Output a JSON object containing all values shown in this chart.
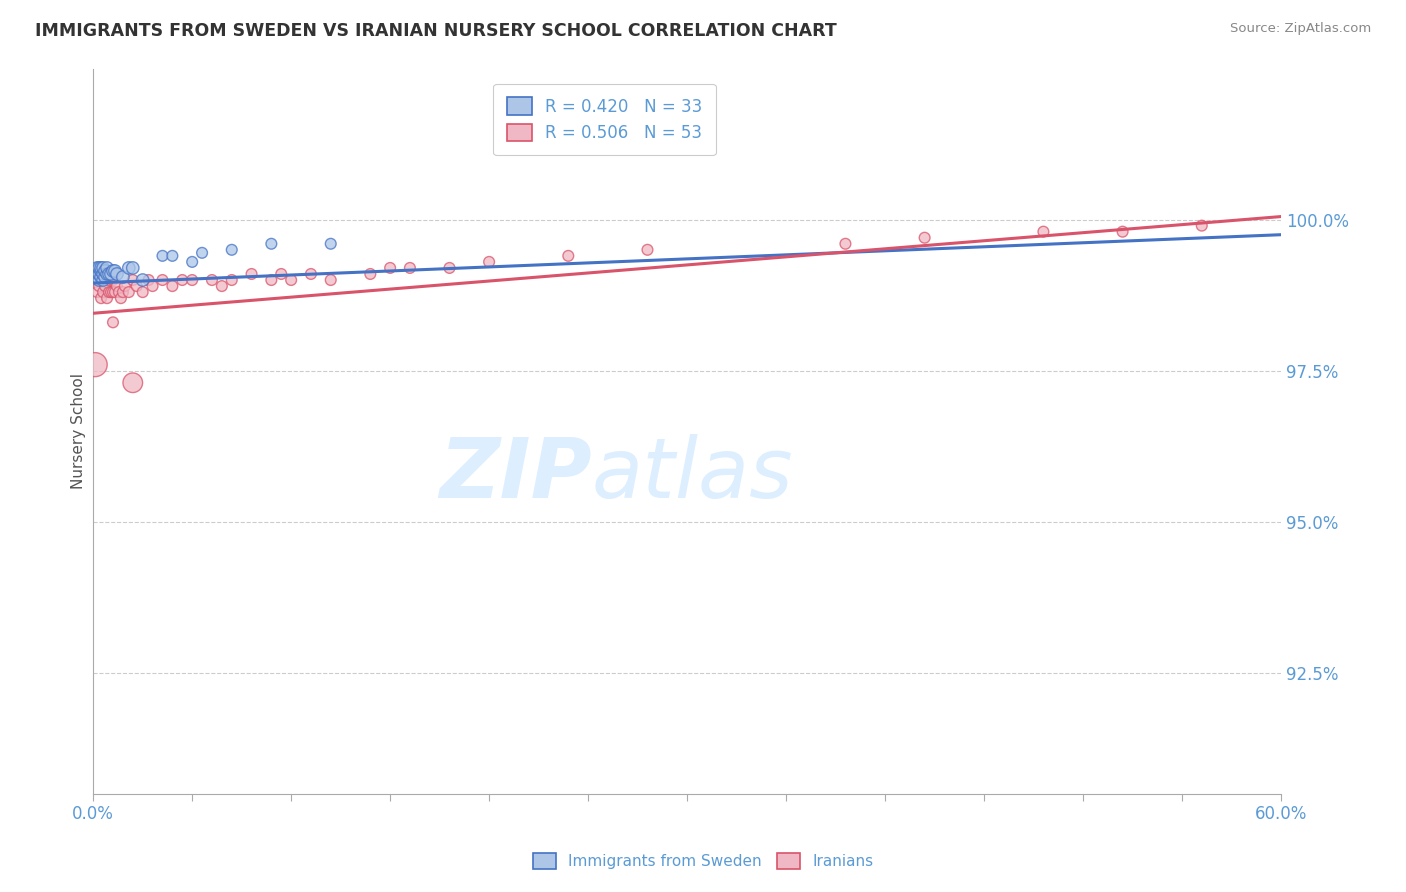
{
  "title": "IMMIGRANTS FROM SWEDEN VS IRANIAN NURSERY SCHOOL CORRELATION CHART",
  "source": "Source: ZipAtlas.com",
  "ylabel": "Nursery School",
  "ytick_labels": [
    "100.0%",
    "97.5%",
    "95.0%",
    "92.5%"
  ],
  "ytick_values": [
    1.0,
    0.975,
    0.95,
    0.925
  ],
  "xlim": [
    0.0,
    0.6
  ],
  "ylim": [
    0.905,
    1.025
  ],
  "legend_entries": [
    {
      "label": "Immigrants from Sweden",
      "R": "0.420",
      "N": "33",
      "color": "#7eb3e0"
    },
    {
      "label": "Iranians",
      "R": "0.506",
      "N": "53",
      "color": "#f4a0b0"
    }
  ],
  "sweden_scatter_x": [
    0.001,
    0.002,
    0.002,
    0.002,
    0.003,
    0.003,
    0.003,
    0.004,
    0.004,
    0.004,
    0.005,
    0.005,
    0.005,
    0.006,
    0.006,
    0.007,
    0.007,
    0.008,
    0.009,
    0.01,
    0.011,
    0.012,
    0.015,
    0.018,
    0.02,
    0.025,
    0.035,
    0.04,
    0.05,
    0.055,
    0.07,
    0.09,
    0.12
  ],
  "sweden_scatter_y": [
    0.9905,
    0.991,
    0.9915,
    0.992,
    0.99,
    0.991,
    0.992,
    0.9905,
    0.9915,
    0.992,
    0.99,
    0.991,
    0.992,
    0.9905,
    0.9915,
    0.991,
    0.992,
    0.991,
    0.991,
    0.9915,
    0.9915,
    0.991,
    0.9905,
    0.992,
    0.992,
    0.99,
    0.994,
    0.994,
    0.993,
    0.9945,
    0.995,
    0.996,
    0.996
  ],
  "sweden_scatter_sizes": [
    80,
    80,
    80,
    80,
    80,
    80,
    80,
    80,
    80,
    80,
    80,
    80,
    80,
    80,
    80,
    80,
    80,
    80,
    80,
    80,
    80,
    80,
    80,
    80,
    80,
    80,
    60,
    60,
    60,
    60,
    60,
    60,
    60
  ],
  "iran_scatter_x": [
    0.001,
    0.002,
    0.003,
    0.004,
    0.004,
    0.005,
    0.005,
    0.006,
    0.007,
    0.008,
    0.008,
    0.009,
    0.01,
    0.01,
    0.011,
    0.012,
    0.013,
    0.014,
    0.015,
    0.016,
    0.018,
    0.02,
    0.022,
    0.025,
    0.028,
    0.03,
    0.035,
    0.04,
    0.045,
    0.05,
    0.06,
    0.065,
    0.07,
    0.08,
    0.09,
    0.095,
    0.1,
    0.11,
    0.12,
    0.14,
    0.15,
    0.16,
    0.18,
    0.2,
    0.24,
    0.28,
    0.38,
    0.42,
    0.48,
    0.52,
    0.56,
    0.01,
    0.02
  ],
  "iran_scatter_y": [
    0.976,
    0.988,
    0.989,
    0.987,
    0.99,
    0.988,
    0.99,
    0.989,
    0.987,
    0.988,
    0.99,
    0.988,
    0.988,
    0.99,
    0.988,
    0.989,
    0.988,
    0.987,
    0.988,
    0.989,
    0.988,
    0.99,
    0.989,
    0.988,
    0.99,
    0.989,
    0.99,
    0.989,
    0.99,
    0.99,
    0.99,
    0.989,
    0.99,
    0.991,
    0.99,
    0.991,
    0.99,
    0.991,
    0.99,
    0.991,
    0.992,
    0.992,
    0.992,
    0.993,
    0.994,
    0.995,
    0.996,
    0.997,
    0.998,
    0.998,
    0.999,
    0.983,
    0.973
  ],
  "iran_scatter_sizes": [
    300,
    60,
    60,
    60,
    60,
    60,
    60,
    60,
    60,
    60,
    60,
    60,
    60,
    60,
    60,
    60,
    60,
    60,
    60,
    60,
    60,
    60,
    60,
    60,
    60,
    60,
    60,
    60,
    60,
    60,
    60,
    60,
    60,
    60,
    60,
    60,
    60,
    60,
    60,
    60,
    60,
    60,
    60,
    60,
    60,
    60,
    60,
    60,
    60,
    60,
    60,
    60,
    200
  ],
  "sweden_trend_x": [
    0.0,
    0.6
  ],
  "sweden_trend_y": [
    0.9895,
    0.9975
  ],
  "iran_trend_x": [
    0.0,
    0.6
  ],
  "iran_trend_y": [
    0.9845,
    1.0005
  ],
  "sweden_color": "#4472c4",
  "iran_color": "#d9546a",
  "sweden_fill": "#adc6e8",
  "iran_fill": "#f0b8c4",
  "watermark_zip": "ZIP",
  "watermark_atlas": "atlas",
  "watermark_color": "#ddeeff",
  "grid_color": "#cccccc",
  "axis_color": "#5b9bd5",
  "title_color": "#333333",
  "source_color": "#888888"
}
